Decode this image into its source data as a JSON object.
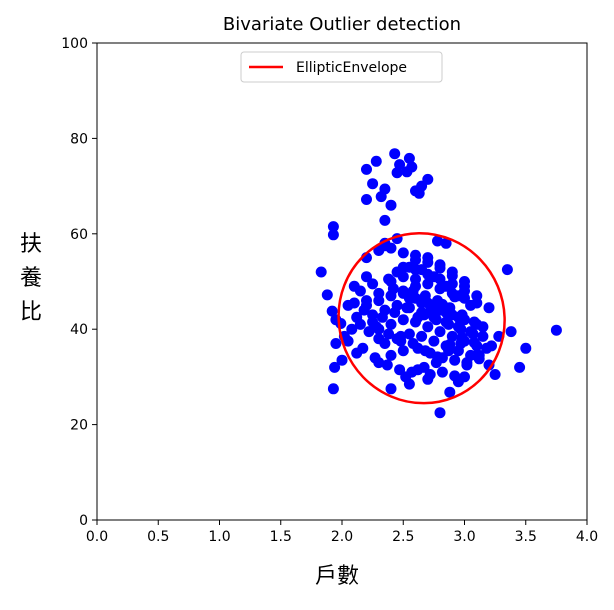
{
  "chart_data": {
    "type": "scatter",
    "title": "Bivariate Outlier detection",
    "xlabel": "戶數",
    "ylabel": "扶養比",
    "xlim": [
      0.0,
      4.0
    ],
    "ylim": [
      0,
      100
    ],
    "xticks": [
      "0.0",
      "0.5",
      "1.0",
      "1.5",
      "2.0",
      "2.5",
      "3.0",
      "3.5",
      "4.0"
    ],
    "yticks": [
      "0",
      "20",
      "40",
      "60",
      "80",
      "100"
    ],
    "grid": false,
    "legend": {
      "position": "top-center",
      "entries": [
        "EllipticEnvelope"
      ]
    },
    "colors": {
      "points": "#0000ff",
      "envelope": "#ff0000",
      "axes": "#000000"
    },
    "series": [
      {
        "name": "",
        "kind": "scatter",
        "x": [
          2.2,
          2.28,
          2.35,
          2.43,
          2.47,
          2.53,
          2.6,
          2.65,
          2.7,
          2.45,
          2.55,
          2.25,
          2.32,
          2.4,
          2.57,
          2.63,
          2.2,
          2.35,
          1.93,
          1.93,
          1.83,
          1.88,
          1.92,
          1.95,
          1.94,
          2.0,
          2.05,
          2.12,
          2.08,
          2.15,
          2.05,
          2.1,
          1.93,
          1.95,
          1.99,
          2.02,
          2.8,
          2.88,
          3.35,
          3.5,
          3.75,
          3.45,
          3.38,
          2.78,
          2.85,
          3.0,
          2.4,
          2.55,
          2.3,
          2.7,
          2.95,
          3.25,
          3.2,
          3.1,
          2.2,
          2.35,
          2.5,
          2.6,
          2.2,
          2.3,
          2.4,
          2.5,
          2.6,
          2.7,
          2.8,
          2.9,
          3.0,
          3.1,
          2.25,
          2.35,
          2.45,
          2.55,
          2.65,
          2.75,
          2.85,
          2.95,
          3.05,
          3.15,
          2.3,
          2.4,
          2.5,
          2.6,
          2.7,
          2.8,
          2.9,
          3.0,
          3.1,
          2.35,
          2.45,
          2.55,
          2.65,
          2.75,
          2.85,
          2.95,
          3.05,
          2.4,
          2.5,
          2.6,
          2.7,
          2.8,
          2.9,
          3.0,
          3.1,
          3.2,
          2.5,
          2.6,
          2.7,
          2.8,
          2.9,
          3.0,
          3.1,
          2.6,
          2.7,
          2.8,
          2.9,
          3.0,
          2.15,
          2.25,
          2.45,
          2.55,
          2.65,
          2.75,
          2.85,
          2.95,
          3.05,
          2.2,
          2.3,
          2.42,
          2.58,
          2.68,
          2.78,
          2.88,
          2.98,
          3.08,
          2.28,
          2.38,
          2.48,
          2.62,
          2.72,
          2.82,
          2.92,
          3.02,
          3.12,
          3.22,
          2.33,
          2.43,
          2.53,
          2.67,
          2.77,
          2.87,
          2.97,
          3.07,
          2.18,
          2.22,
          2.1,
          2.12,
          2.17,
          2.27,
          2.37,
          2.47,
          2.57,
          2.67,
          2.77,
          2.87,
          2.97,
          2.2,
          2.3,
          2.4,
          2.5,
          2.6,
          2.7,
          2.8,
          2.9,
          3.0,
          2.48,
          2.58,
          2.68,
          2.78,
          2.88,
          2.98,
          3.08,
          3.18,
          2.52,
          2.62,
          2.72,
          2.82,
          2.92,
          3.02,
          3.12,
          2.55,
          2.65,
          2.75,
          2.85,
          2.95,
          2.35,
          2.45,
          2.25,
          2.62,
          2.72,
          2.82,
          2.92,
          3.15,
          3.28,
          2.4,
          2.5,
          2.3,
          2.38
        ],
        "y": [
          73.5,
          75.2,
          69.4,
          76.8,
          74.5,
          73.0,
          69.0,
          70.0,
          71.4,
          72.8,
          75.8,
          70.5,
          67.8,
          66.0,
          74.0,
          68.5,
          67.2,
          62.8,
          61.5,
          59.8,
          52.0,
          47.2,
          43.8,
          42.0,
          32.0,
          33.5,
          37.5,
          35.0,
          40.0,
          41.0,
          45.0,
          49.0,
          27.5,
          37.0,
          41.2,
          38.5,
          22.5,
          26.8,
          52.5,
          36.0,
          39.8,
          32.0,
          39.5,
          58.5,
          58.0,
          30.0,
          27.5,
          28.5,
          33.0,
          29.5,
          29.0,
          30.5,
          32.5,
          34.5,
          51.0,
          57.5,
          48.0,
          49.0,
          45.0,
          46.0,
          47.0,
          47.5,
          46.5,
          45.5,
          44.0,
          43.0,
          42.0,
          41.0,
          43.0,
          44.0,
          45.0,
          44.5,
          43.5,
          42.5,
          41.5,
          40.5,
          39.5,
          38.5,
          40.0,
          41.0,
          42.0,
          41.5,
          40.5,
          39.5,
          38.5,
          37.5,
          36.5,
          37.0,
          38.0,
          39.0,
          38.5,
          37.5,
          36.5,
          35.5,
          34.5,
          50.0,
          51.0,
          50.5,
          49.5,
          48.5,
          47.5,
          46.5,
          45.5,
          44.5,
          53.0,
          52.5,
          51.5,
          50.5,
          49.5,
          48.0,
          47.0,
          54.5,
          55.0,
          53.5,
          52.0,
          50.0,
          48.0,
          49.5,
          52.0,
          53.0,
          52.5,
          51.0,
          49.0,
          47.0,
          45.0,
          46.0,
          47.5,
          48.5,
          48.0,
          47.0,
          46.0,
          44.5,
          43.0,
          41.5,
          40.5,
          39.0,
          37.5,
          36.0,
          35.0,
          34.0,
          33.5,
          33.0,
          34.5,
          36.5,
          42.5,
          43.5,
          44.5,
          43.0,
          42.0,
          41.0,
          40.0,
          39.0,
          44.0,
          39.5,
          45.5,
          42.5,
          36.0,
          34.0,
          32.5,
          31.5,
          31.0,
          32.0,
          33.0,
          35.5,
          37.0,
          55.0,
          56.5,
          57.0,
          56.0,
          55.5,
          54.0,
          52.8,
          51.2,
          49.0,
          38.5,
          37.0,
          35.5,
          34.2,
          36.8,
          38.2,
          37.2,
          36.0,
          30.0,
          31.5,
          30.5,
          31.0,
          30.2,
          32.5,
          33.8,
          46.5,
          45.5,
          44.5,
          43.5,
          42.5,
          58.0,
          59.0,
          41.5,
          42.5,
          43.8,
          45.2,
          46.8,
          40.5,
          38.5,
          34.5,
          35.5,
          38.0,
          50.5
        ]
      },
      {
        "name": "EllipticEnvelope",
        "kind": "ellipse",
        "center": [
          2.65,
          42.3
        ],
        "vertices": [
          [
            2.38,
            58.8
          ],
          [
            2.92,
            25.8
          ]
        ],
        "co_vertices": [
          [
            2.02,
            48.5
          ],
          [
            3.28,
            36.0
          ]
        ]
      }
    ]
  }
}
